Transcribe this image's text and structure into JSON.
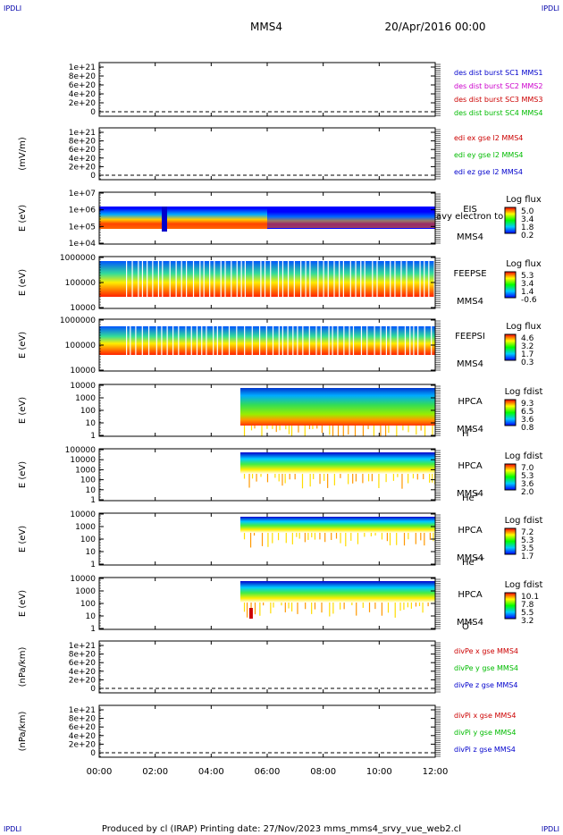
{
  "header": {
    "corner_left": "IPDLI",
    "corner_right": "IPDLI",
    "corner_bl": "IPDLI",
    "corner_br": "IPDLI",
    "spacecraft": "MMS4",
    "date": "20/Apr/2016 00:00"
  },
  "footer": {
    "text": "Produced by cl (IRAP)   Printing date: 27/Nov/2023   mms_mms4_srvy_vue_web2.cl"
  },
  "colors": {
    "blue": "#0000cc",
    "magenta": "#cc00cc",
    "red": "#cc0000",
    "green": "#00bb00"
  },
  "chart_data": [
    {
      "type": "line",
      "ylabel": "",
      "yticks": [
        "1e+21",
        "8e+20",
        "6e+20",
        "4e+20",
        "2e+20",
        "0"
      ],
      "legend": [
        {
          "text": "des dist burst SC1 MMS1",
          "color": "#0000cc"
        },
        {
          "text": "des dist burst SC2 MMS2",
          "color": "#cc00cc"
        },
        {
          "text": "des dist burst SC3 MMS3",
          "color": "#cc0000"
        },
        {
          "text": "des dist burst SC4 MMS4",
          "color": "#00bb00"
        }
      ]
    },
    {
      "type": "line",
      "ylabel": "(mV/m)",
      "yticks": [
        "1e+21",
        "8e+20",
        "6e+20",
        "4e+20",
        "2e+20",
        "0"
      ],
      "legend": [
        {
          "text": "edi ex gse l2 MMS4",
          "color": "#cc0000"
        },
        {
          "text": "edi ey gse l2 MMS4",
          "color": "#00bb00"
        },
        {
          "text": "edi ez gse l2 MMS4",
          "color": "#0000cc"
        }
      ]
    },
    {
      "type": "heatmap",
      "ylabel": "E (eV)",
      "yticks": [
        "1e+07",
        "1e+06",
        "1e+05",
        "1e+04"
      ],
      "instrument": [
        "EIS",
        "MMS4"
      ],
      "overlay": "avy electron to",
      "cbar_title": "Log flux",
      "cbar_ticks": [
        "5.0",
        "3.4",
        "1.8",
        "0.2"
      ]
    },
    {
      "type": "heatmap",
      "ylabel": "E (eV)",
      "yticks": [
        "1000000",
        "100000",
        "10000"
      ],
      "instrument": [
        "FEEPSE",
        "MMS4"
      ],
      "cbar_title": "Log flux",
      "cbar_ticks": [
        "5.3",
        "3.4",
        "1.4",
        "-0.6"
      ]
    },
    {
      "type": "heatmap",
      "ylabel": "E (eV)",
      "yticks": [
        "1000000",
        "100000",
        "10000"
      ],
      "instrument": [
        "FEEPSI",
        "MMS4"
      ],
      "cbar_title": "Log flux",
      "cbar_ticks": [
        "4.6",
        "3.2",
        "1.7",
        "0.3"
      ]
    },
    {
      "type": "heatmap",
      "ylabel": "E (eV)",
      "yticks": [
        "10000",
        "1000",
        "100",
        "10",
        "1"
      ],
      "instrument": [
        "HPCA",
        "MMS4"
      ],
      "species": "H",
      "species_sup": "+",
      "cbar_title": "Log fdist",
      "cbar_ticks": [
        "9.3",
        "6.5",
        "3.6",
        "0.8"
      ]
    },
    {
      "type": "heatmap",
      "ylabel": "E (eV)",
      "yticks": [
        "100000",
        "10000",
        "1000",
        "100",
        "10",
        "1"
      ],
      "instrument": [
        "HPCA",
        "MMS4"
      ],
      "species": "He",
      "species_sup": "+",
      "cbar_title": "Log fdist",
      "cbar_ticks": [
        "7.0",
        "5.3",
        "3.6",
        "2.0"
      ]
    },
    {
      "type": "heatmap",
      "ylabel": "E (eV)",
      "yticks": [
        "10000",
        "1000",
        "100",
        "10",
        "1"
      ],
      "instrument": [
        "HPCA",
        "MMS4"
      ],
      "species": "He",
      "species_sup": "++",
      "cbar_title": "Log fdist",
      "cbar_ticks": [
        "7.2",
        "5.3",
        "3.5",
        "1.7"
      ]
    },
    {
      "type": "heatmap",
      "ylabel": "E (eV)",
      "yticks": [
        "10000",
        "1000",
        "100",
        "10",
        "1"
      ],
      "instrument": [
        "HPCA",
        "MMS4"
      ],
      "species": "O",
      "species_sup": "+",
      "cbar_title": "Log fdist",
      "cbar_ticks": [
        "10.1",
        "7.8",
        "5.5",
        "3.2"
      ]
    },
    {
      "type": "line",
      "ylabel": "(nPa/km)",
      "yticks": [
        "1e+21",
        "8e+20",
        "6e+20",
        "4e+20",
        "2e+20",
        "0"
      ],
      "legend": [
        {
          "text": "divPe x gse MMS4",
          "color": "#cc0000"
        },
        {
          "text": "divPe y gse MMS4",
          "color": "#00bb00"
        },
        {
          "text": "divPe z gse MMS4",
          "color": "#0000cc"
        }
      ]
    },
    {
      "type": "line",
      "ylabel": "(nPa/km)",
      "yticks": [
        "1e+21",
        "8e+20",
        "6e+20",
        "4e+20",
        "2e+20",
        "0"
      ],
      "legend": [
        {
          "text": "divPi x gse MMS4",
          "color": "#cc0000"
        },
        {
          "text": "divPi y gse MMS4",
          "color": "#00bb00"
        },
        {
          "text": "divPi z gse MMS4",
          "color": "#0000cc"
        }
      ]
    }
  ],
  "time_axis": {
    "ticks": [
      "00:00",
      "02:00",
      "04:00",
      "06:00",
      "08:00",
      "10:00",
      "12:00"
    ]
  }
}
